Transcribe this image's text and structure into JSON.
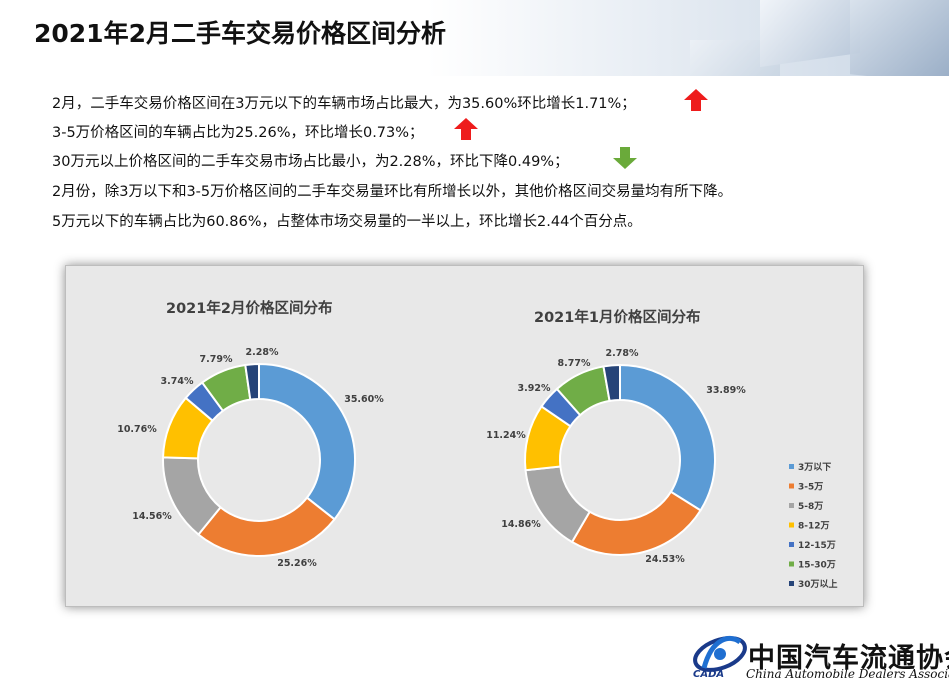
{
  "title": "2021年2月二手车交易价格区间分析",
  "summary": [
    {
      "text": "2月，二手车交易价格区间在3万元以下的车辆市场占比最大，为35.60%环比增长1.71%；",
      "arrow": "up-arrow-icon"
    },
    {
      "text": "3-5万价格区间的车辆占比为25.26%，环比增长0.73%；",
      "arrow": "up-arrow-icon"
    },
    {
      "text": "30万元以上价格区间的二手车交易市场占比最小，为2.28%，环比下降0.49%；",
      "arrow": "down-arrow-icon"
    },
    {
      "text": "2月份，除3万以下和3-5万价格区间的二手车交易量环比有所增长以外，其他价格区间交易量均有所下降。",
      "arrow": null
    },
    {
      "text": "5万元以下的车辆占比为60.86%，占整体市场交易量的一半以上，环比增长2.44个百分点。",
      "arrow": null
    }
  ],
  "colors": {
    "up_arrow": "#ee1c1c",
    "down_arrow": "#6aaa3a",
    "chart_bg": "#e8e8e8"
  },
  "chart_data": [
    {
      "type": "pie",
      "variant": "doughnut",
      "title": "2021年2月价格区间分布",
      "categories": [
        "3万以下",
        "3-5万",
        "5-8万",
        "8-12万",
        "12-15万",
        "15-30万",
        "30万以上"
      ],
      "values": [
        35.6,
        25.26,
        14.56,
        10.76,
        3.74,
        7.79,
        2.28
      ],
      "labels": [
        "35.60%",
        "25.26%",
        "14.56%",
        "10.76%",
        "3.74%",
        "7.79%",
        "2.28%"
      ],
      "colors": [
        "#5b9bd5",
        "#ed7d31",
        "#a5a5a5",
        "#ffc000",
        "#4472c4",
        "#70ad47",
        "#264478"
      ]
    },
    {
      "type": "pie",
      "variant": "doughnut",
      "title": "2021年1月价格区间分布",
      "categories": [
        "3万以下",
        "3-5万",
        "5-8万",
        "8-12万",
        "12-15万",
        "15-30万",
        "30万以上"
      ],
      "values": [
        33.89,
        24.53,
        14.86,
        11.24,
        3.92,
        8.77,
        2.78
      ],
      "labels": [
        "33.89%",
        "24.53%",
        "14.86%",
        "11.24%",
        "3.92%",
        "8.77%",
        "2.78%"
      ],
      "colors": [
        "#5b9bd5",
        "#ed7d31",
        "#a5a5a5",
        "#ffc000",
        "#4472c4",
        "#70ad47",
        "#264478"
      ]
    }
  ],
  "legend": {
    "placement": "right",
    "items": [
      "3万以下",
      "3-5万",
      "5-8万",
      "8-12万",
      "12-15万",
      "15-30万",
      "30万以上"
    ]
  },
  "logo": {
    "name_cn": "中国汽车流通协会",
    "name_en": "China Automobile Dealers Association",
    "abbr": "CADA"
  }
}
